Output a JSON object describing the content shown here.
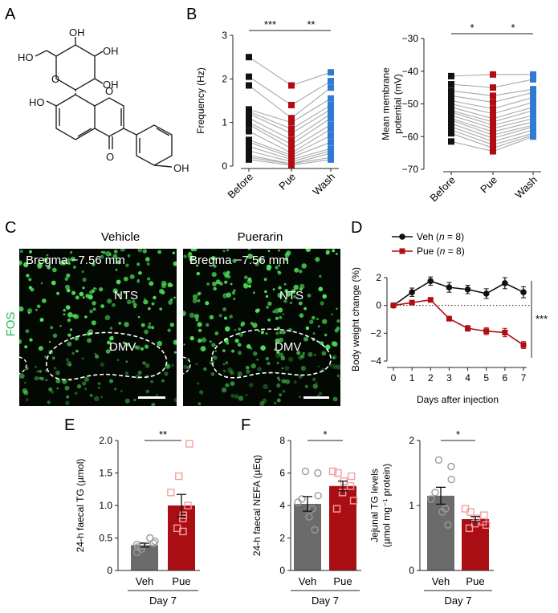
{
  "panel_letters": {
    "a": "A",
    "b": "B",
    "c": "C",
    "d": "D",
    "e": "E",
    "f": "F"
  },
  "structure": {
    "oh1": "OH",
    "oh2": "OH",
    "oh3": "OH",
    "ho_side": "HO",
    "ho_ring": "HO",
    "oh_phenol": "OH",
    "o_sugar": "O",
    "o_ring": "O",
    "o_keto": "O"
  },
  "colors": {
    "black": "#111111",
    "red": "#b00d12",
    "blue": "#2f7bd4",
    "grey_bar": "#6b6b6b",
    "red_bar": "#a90e13",
    "green": "#4fe05a",
    "fos": "#21b85a"
  },
  "panel_c": {
    "stain": "FOS",
    "vehicle": {
      "title": "Vehicle",
      "bregma": "Bregma −7.56 mm",
      "nts": "NTS",
      "dmv": "DMV"
    },
    "puerarin": {
      "title": "Puerarin",
      "bregma": "Bregma −7.56 mm",
      "nts": "NTS",
      "dmv": "DMV"
    }
  },
  "chart_data": [
    {
      "id": "B1",
      "type": "scatter",
      "title": "",
      "xlabel": "",
      "ylabel": "Frequency (Hz)",
      "categories": [
        "Before",
        "Pue",
        "Wash"
      ],
      "ylim": [
        0,
        3
      ],
      "yticks": [
        0,
        1,
        2,
        3
      ],
      "points": {
        "Before": [
          2.5,
          2.05,
          1.85,
          1.3,
          1.25,
          1.2,
          1.1,
          1.0,
          0.95,
          0.8,
          0.6,
          0.55,
          0.45,
          0.35,
          0.25,
          0.2,
          0.15
        ],
        "Pue": [
          1.85,
          1.4,
          1.1,
          1.0,
          0.85,
          0.75,
          0.6,
          0.5,
          0.4,
          0.3,
          0.25,
          0.2,
          0.15,
          0.1,
          0.05,
          0.05,
          0.02
        ],
        "Wash": [
          2.15,
          1.95,
          1.8,
          1.55,
          1.4,
          1.3,
          1.2,
          1.1,
          0.95,
          0.85,
          0.7,
          0.55,
          0.4,
          0.35,
          0.3,
          0.2,
          0.15
        ]
      },
      "series_colors": [
        "#111111",
        "#b00d12",
        "#2f7bd4"
      ],
      "significance": [
        {
          "from": "Before",
          "to": "Pue",
          "label": "***"
        },
        {
          "from": "Pue",
          "to": "Wash",
          "label": "**"
        }
      ]
    },
    {
      "id": "B2",
      "type": "scatter",
      "title": "",
      "xlabel": "",
      "ylabel": "Mean membrane potential (mV)",
      "ylabel_lines": [
        "Mean membrane",
        "potential (mV)"
      ],
      "categories": [
        "Before",
        "Pue",
        "Wash"
      ],
      "ylim": [
        -70,
        -30
      ],
      "yticks": [
        -70,
        -60,
        -50,
        -40,
        -30
      ],
      "points": {
        "Before": [
          -41.5,
          -44,
          -46,
          -47.5,
          -49,
          -50,
          -51,
          -52,
          -52.5,
          -53.5,
          -54.5,
          -55,
          -56,
          -57,
          -58,
          -59,
          -61.5
        ],
        "Pue": [
          -41,
          -45,
          -47.5,
          -49.5,
          -51.5,
          -53,
          -54.5,
          -55.5,
          -56.5,
          -57.5,
          -58.5,
          -59.5,
          -60.5,
          -61.5,
          -62.5,
          -63.5,
          -64.5
        ],
        "Wash": [
          -41,
          -42.5,
          -45.5,
          -46.5,
          -48,
          -49.5,
          -51,
          -52,
          -53.5,
          -54.5,
          -55.5,
          -56.5,
          -57,
          -58,
          -59,
          -59.5,
          -60
        ]
      },
      "series_colors": [
        "#111111",
        "#b00d12",
        "#2f7bd4"
      ],
      "significance": [
        {
          "from": "Before",
          "to": "Pue",
          "label": "*"
        },
        {
          "from": "Pue",
          "to": "Wash",
          "label": "*"
        }
      ]
    },
    {
      "id": "D",
      "type": "line",
      "title": "",
      "xlabel": "Days after injection",
      "ylabel": "Body weight change (%)",
      "xlim": [
        0,
        7
      ],
      "ylim": [
        -4,
        2
      ],
      "xticks": [
        0,
        1,
        2,
        3,
        4,
        5,
        6,
        7
      ],
      "yticks": [
        -4,
        -2,
        0,
        2
      ],
      "x": [
        0,
        1,
        2,
        3,
        4,
        5,
        6,
        7
      ],
      "series": [
        {
          "name": "Veh (n = 8)",
          "legend_main": "Veh (",
          "legend_n": "n",
          "legend_tail": " = 8)",
          "color": "#111111",
          "values": [
            0,
            0.95,
            1.75,
            1.3,
            1.15,
            0.85,
            1.6,
            0.95
          ],
          "err": [
            0.1,
            0.3,
            0.3,
            0.35,
            0.3,
            0.35,
            0.4,
            0.4
          ]
        },
        {
          "name": "Pue (n = 8)",
          "legend_main": "Pue (",
          "legend_n": "n",
          "legend_tail": " = 8)",
          "color": "#b00d12",
          "values": [
            0,
            0.2,
            0.4,
            -0.95,
            -1.65,
            -1.85,
            -1.95,
            -2.85
          ],
          "err": [
            0.05,
            0.1,
            0.1,
            0.15,
            0.2,
            0.25,
            0.3,
            0.25
          ]
        }
      ],
      "legend": "top-left",
      "significance": "***"
    },
    {
      "id": "E",
      "type": "bar",
      "title": "",
      "xlabel": "Day 7",
      "ylabel": "24-h faecal TG (µmol)",
      "categories": [
        "Veh",
        "Pue"
      ],
      "values": [
        0.39,
        1.0
      ],
      "err": [
        0.03,
        0.17
      ],
      "ylim": [
        0,
        2.0
      ],
      "yticks": [
        0,
        0.5,
        1.0,
        1.5,
        2.0
      ],
      "ytick_labels": [
        "0",
        "0.5",
        "1.0",
        "1.5",
        "2.0"
      ],
      "points": [
        [
          0.28,
          0.33,
          0.36,
          0.38,
          0.4,
          0.42,
          0.45,
          0.5
        ],
        [
          0.6,
          0.65,
          0.8,
          0.85,
          1.0,
          1.2,
          1.45,
          1.95
        ]
      ],
      "significance": "**"
    },
    {
      "id": "F1",
      "type": "bar",
      "title": "",
      "xlabel": "Day 7",
      "ylabel": "24-h faecal NEFA (µEq)",
      "categories": [
        "Veh",
        "Pue"
      ],
      "values": [
        4.1,
        5.2
      ],
      "err": [
        0.45,
        0.3
      ],
      "ylim": [
        0,
        8
      ],
      "yticks": [
        0,
        2,
        4,
        6,
        8
      ],
      "points": [
        [
          2.5,
          3.3,
          3.8,
          4.2,
          4.4,
          4.6,
          6.0,
          6.1
        ],
        [
          3.8,
          4.3,
          4.8,
          5.2,
          5.5,
          5.8,
          6.0,
          6.1
        ]
      ],
      "significance": "*"
    },
    {
      "id": "F2",
      "type": "bar",
      "title": "",
      "xlabel": "Day 7",
      "ylabel": "Jejunal TG levels (µmol mg⁻¹ protein)",
      "ylabel_lines": [
        "Jejunal TG levels",
        "(µmol mg⁻¹ protein)"
      ],
      "categories": [
        "Veh",
        "Pue"
      ],
      "values": [
        1.15,
        0.79
      ],
      "err": [
        0.13,
        0.04
      ],
      "ylim": [
        0,
        2
      ],
      "yticks": [
        0,
        1,
        2
      ],
      "points": [
        [
          0.7,
          0.9,
          0.95,
          1.1,
          1.2,
          1.4,
          1.6,
          1.7
        ],
        [
          0.65,
          0.7,
          0.72,
          0.75,
          0.8,
          0.85,
          0.9,
          0.95
        ]
      ],
      "significance": "*"
    }
  ]
}
